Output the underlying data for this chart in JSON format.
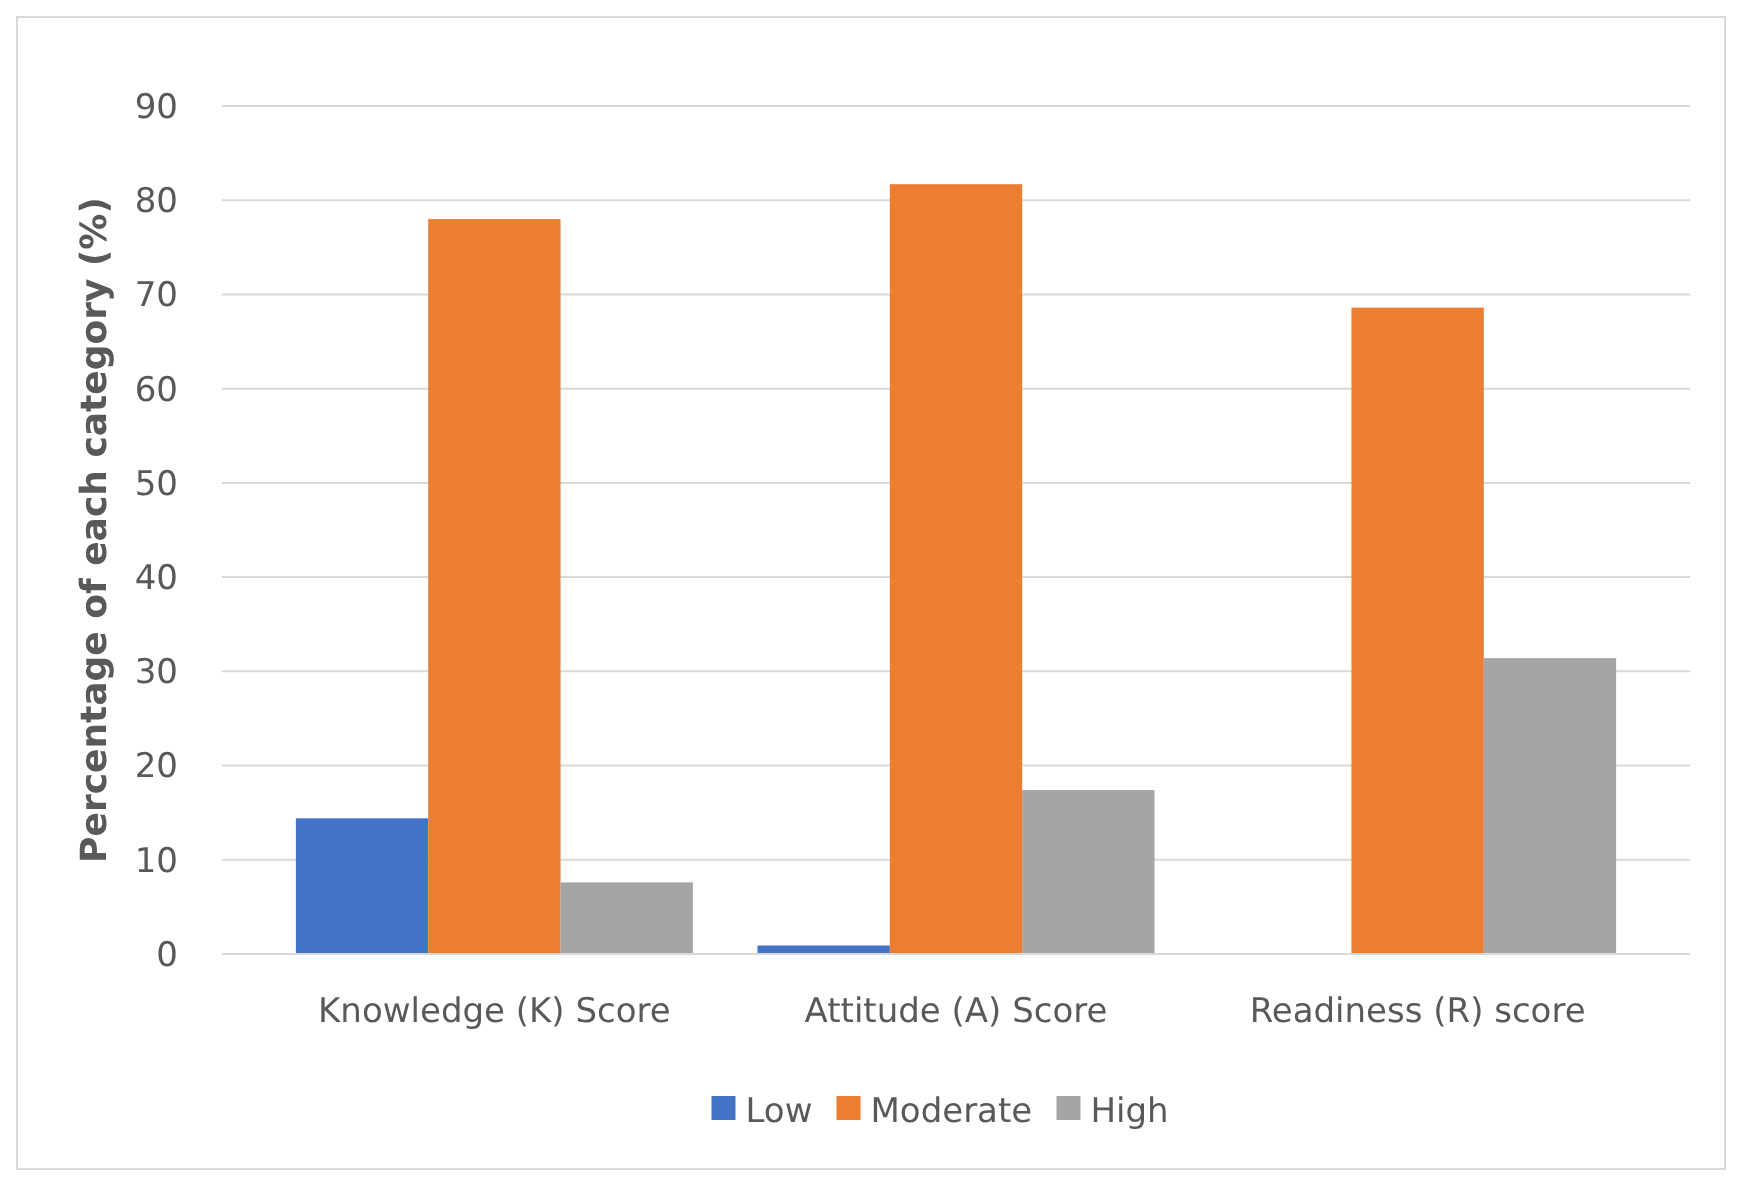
{
  "chart_data": {
    "type": "bar",
    "ylabel": "Percentage of each category (%)",
    "categories": [
      "Knowledge (K) Score",
      "Attitude (A) Score",
      "Readiness (R) score"
    ],
    "series": [
      {
        "name": "Low",
        "color": "#4472c4",
        "values": [
          14.4,
          0.9,
          0
        ]
      },
      {
        "name": "Moderate",
        "color": "#ed7d31",
        "values": [
          78,
          81.7,
          68.6
        ]
      },
      {
        "name": "High",
        "color": "#a5a5a5",
        "values": [
          7.6,
          17.4,
          31.4
        ]
      }
    ],
    "ylim": [
      0,
      90
    ],
    "yticks": [
      0,
      10,
      20,
      30,
      40,
      50,
      60,
      70,
      80,
      90
    ],
    "grid": "y",
    "legend": "bottom"
  }
}
